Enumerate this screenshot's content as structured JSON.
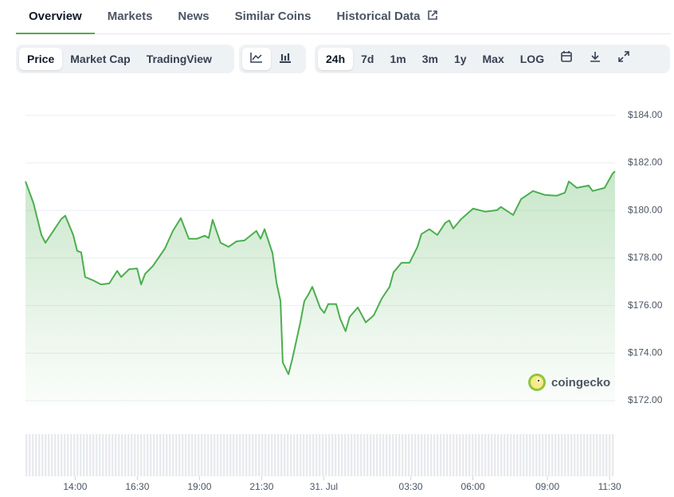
{
  "tabs": [
    "Overview",
    "Markets",
    "News",
    "Similar Coins",
    "Historical Data"
  ],
  "chart_type_buttons": [
    "Price",
    "Market Cap",
    "TradingView"
  ],
  "range_buttons": [
    "24h",
    "7d",
    "1m",
    "3m",
    "1y",
    "Max",
    "LOG"
  ],
  "watermark": "coingecko",
  "chart_data": {
    "type": "line",
    "color": "#4bae4f",
    "grid": true,
    "x": [
      12.0,
      12.32,
      12.64,
      12.8,
      13.12,
      13.44,
      13.6,
      13.92,
      14.08,
      14.24,
      14.4,
      14.72,
      15.04,
      15.37,
      15.69,
      15.85,
      16.17,
      16.49,
      16.65,
      16.81,
      17.13,
      17.61,
      17.93,
      18.25,
      18.57,
      18.89,
      19.21,
      19.37,
      19.53,
      19.85,
      20.17,
      20.49,
      20.81,
      21.29,
      21.46,
      21.62,
      21.94,
      22.1,
      22.26,
      22.35,
      22.58,
      22.74,
      23.06,
      23.22,
      23.38,
      23.54,
      23.86,
      24.02,
      24.18,
      24.5,
      24.66,
      24.88,
      25.04,
      25.37,
      25.69,
      26.01,
      26.33,
      26.65,
      26.81,
      27.13,
      27.45,
      27.77,
      27.93,
      28.25,
      28.57,
      28.89,
      29.05,
      29.21,
      29.53,
      30.01,
      30.49,
      30.97,
      31.13,
      31.62,
      31.94,
      32.42,
      32.9,
      33.38,
      33.7,
      33.86,
      34.18,
      34.66,
      34.82,
      35.3,
      35.62,
      35.72
    ],
    "values": [
      181.22,
      180.31,
      178.97,
      178.64,
      179.14,
      179.64,
      179.78,
      178.97,
      178.3,
      178.24,
      177.2,
      177.06,
      176.89,
      176.93,
      177.46,
      177.2,
      177.53,
      177.56,
      176.89,
      177.33,
      177.67,
      178.4,
      179.14,
      179.68,
      178.81,
      178.81,
      178.94,
      178.84,
      179.61,
      178.64,
      178.47,
      178.7,
      178.74,
      179.14,
      178.81,
      179.21,
      178.2,
      176.96,
      176.19,
      173.61,
      173.11,
      173.78,
      175.29,
      176.19,
      176.46,
      176.79,
      175.89,
      175.69,
      176.06,
      176.06,
      175.45,
      174.92,
      175.52,
      175.92,
      175.29,
      175.59,
      176.29,
      176.79,
      177.4,
      177.8,
      177.8,
      178.47,
      179.01,
      179.21,
      178.97,
      179.48,
      179.58,
      179.24,
      179.64,
      180.08,
      179.95,
      180.01,
      180.15,
      179.81,
      180.48,
      180.82,
      180.65,
      180.62,
      180.75,
      181.22,
      180.95,
      181.05,
      180.82,
      180.95,
      181.55,
      181.65
    ],
    "xlim": [
      12,
      35.72
    ],
    "ylim": [
      171.8,
      185.0
    ],
    "xticks": [
      {
        "value": 14,
        "label": "14:00"
      },
      {
        "value": 16.5,
        "label": "16:30"
      },
      {
        "value": 19,
        "label": "19:00"
      },
      {
        "value": 21.5,
        "label": "21:30"
      },
      {
        "value": 24,
        "label": "31. Jul"
      },
      {
        "value": 27.5,
        "label": "03:30"
      },
      {
        "value": 30,
        "label": "06:00"
      },
      {
        "value": 33,
        "label": "09:00"
      },
      {
        "value": 35.5,
        "label": "11:30"
      }
    ],
    "yticks": [
      {
        "value": 172,
        "label": "$172.00"
      },
      {
        "value": 174,
        "label": "$174.00"
      },
      {
        "value": 176,
        "label": "$176.00"
      },
      {
        "value": 178,
        "label": "$178.00"
      },
      {
        "value": 180,
        "label": "$180.00"
      },
      {
        "value": 182,
        "label": "$182.00"
      },
      {
        "value": 184,
        "label": "$184.00"
      }
    ]
  }
}
